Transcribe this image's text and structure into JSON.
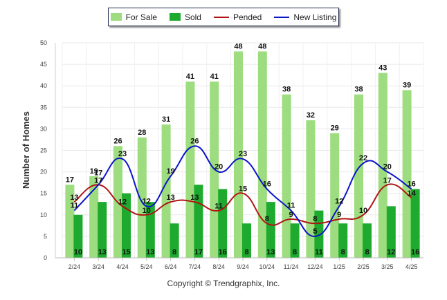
{
  "chart_data": {
    "type": "bar",
    "categories": [
      "2/24",
      "3/24",
      "4/24",
      "5/24",
      "6/24",
      "7/24",
      "8/24",
      "9/24",
      "10/24",
      "11/24",
      "12/24",
      "1/25",
      "2/25",
      "3/25",
      "4/25"
    ],
    "ylabel": "Number of Homes",
    "xlabel": "",
    "ylim": [
      0,
      50
    ],
    "yticks": [
      0,
      5,
      10,
      15,
      20,
      25,
      30,
      35,
      40,
      45,
      50
    ],
    "grid": true,
    "legend_position": "top-center",
    "series": [
      {
        "name": "For Sale",
        "kind": "bar",
        "color": "#9ddc7f",
        "values": [
          17,
          19,
          26,
          28,
          31,
          41,
          41,
          48,
          48,
          38,
          32,
          29,
          38,
          43,
          39
        ]
      },
      {
        "name": "Sold",
        "kind": "bar",
        "color": "#1eaa2e",
        "values": [
          10,
          13,
          15,
          13,
          8,
          17,
          16,
          8,
          13,
          8,
          11,
          8,
          8,
          12,
          16
        ]
      },
      {
        "name": "Pended",
        "kind": "line",
        "color": "#b01414",
        "values": [
          13,
          17,
          12,
          10,
          13,
          13,
          11,
          15,
          8,
          9,
          8,
          9,
          10,
          17,
          14
        ]
      },
      {
        "name": "New Listing",
        "kind": "line",
        "color": "#0a14c8",
        "values": [
          11,
          17,
          23,
          12,
          19,
          26,
          20,
          23,
          16,
          11,
          5,
          12,
          22,
          20,
          16
        ]
      }
    ]
  },
  "footer": {
    "copyright": "Copyright © Trendgraphix, Inc."
  }
}
